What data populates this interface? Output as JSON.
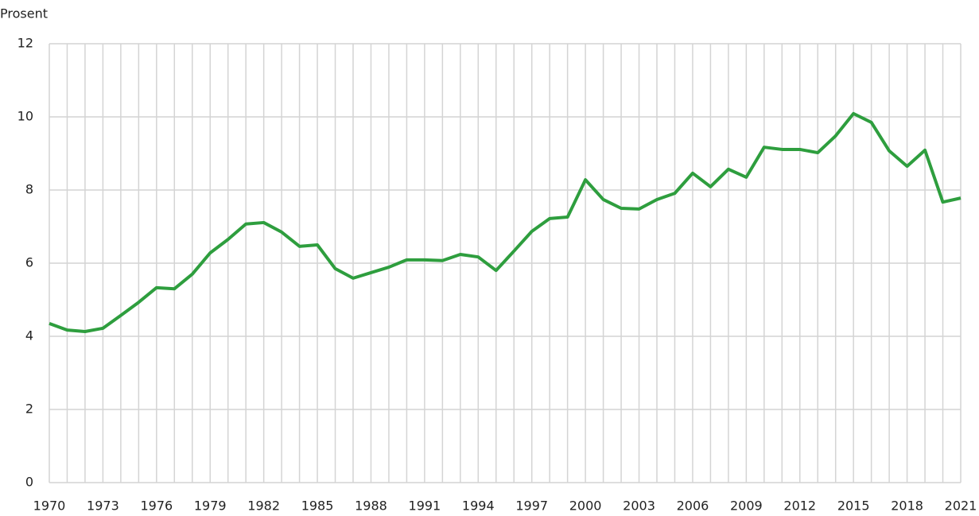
{
  "chart_data": {
    "type": "line",
    "y_label": "Prosent",
    "x": [
      1970,
      1971,
      1972,
      1973,
      1974,
      1975,
      1976,
      1977,
      1978,
      1979,
      1980,
      1981,
      1982,
      1983,
      1984,
      1985,
      1986,
      1987,
      1988,
      1989,
      1990,
      1991,
      1992,
      1993,
      1994,
      1995,
      1996,
      1997,
      1998,
      1999,
      2000,
      2001,
      2002,
      2003,
      2004,
      2005,
      2006,
      2007,
      2008,
      2009,
      2010,
      2011,
      2012,
      2013,
      2014,
      2015,
      2016,
      2017,
      2018,
      2019,
      2020,
      2021
    ],
    "values": [
      4.35,
      4.17,
      4.13,
      4.22,
      4.57,
      4.93,
      5.33,
      5.3,
      5.7,
      6.28,
      6.65,
      7.07,
      7.11,
      6.85,
      6.46,
      6.5,
      5.85,
      5.59,
      5.74,
      5.89,
      6.09,
      6.09,
      6.07,
      6.24,
      6.17,
      5.8,
      6.33,
      6.87,
      7.22,
      7.26,
      8.28,
      7.74,
      7.5,
      7.48,
      7.74,
      7.91,
      8.46,
      8.09,
      8.57,
      8.35,
      9.17,
      9.11,
      9.11,
      9.02,
      9.48,
      10.09,
      9.85,
      9.07,
      8.65,
      9.09,
      7.67,
      7.78
    ],
    "color": "#2e9e3e",
    "xlim": [
      1970,
      2021
    ],
    "xticks": [
      1970,
      1973,
      1976,
      1979,
      1982,
      1985,
      1988,
      1991,
      1994,
      1997,
      2000,
      2003,
      2006,
      2009,
      2012,
      2015,
      2018,
      2021
    ],
    "ylim": [
      0,
      12
    ],
    "yticks": [
      0,
      2,
      4,
      6,
      8,
      10,
      12
    ],
    "grid": true
  }
}
